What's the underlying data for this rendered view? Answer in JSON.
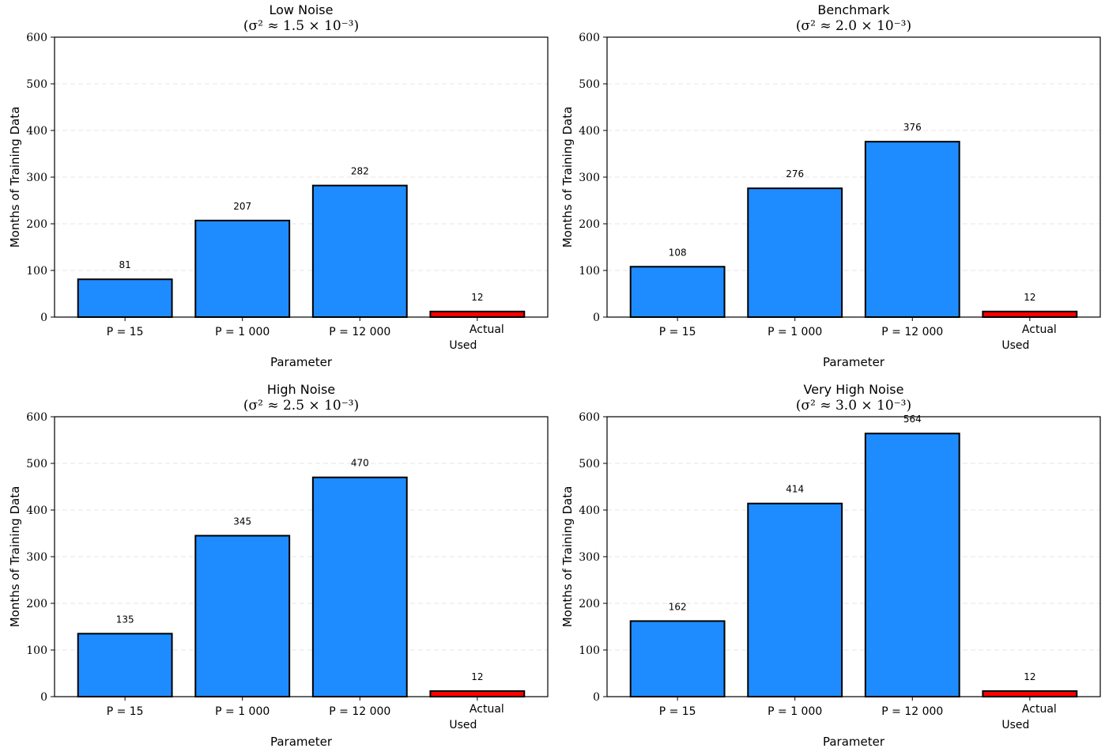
{
  "chart_data": [
    {
      "type": "bar",
      "title": "Low Noise",
      "subtitle": "(σ² ≈ 1.5 × 10⁻³)",
      "xlabel": "Parameter",
      "ylabel": "Months of Training Data",
      "categories": [
        "P = 15",
        "P = 1 000",
        "P = 12 000",
        "Actual\nUsed"
      ],
      "values": [
        81,
        207,
        282,
        12
      ],
      "colors": [
        "#1e8cff",
        "#1e8cff",
        "#1e8cff",
        "#ff0000"
      ],
      "ylim": [
        0,
        600
      ],
      "yticks": [
        0,
        100,
        200,
        300,
        400,
        500,
        600
      ],
      "grid": "y-dashed"
    },
    {
      "type": "bar",
      "title": "Benchmark",
      "subtitle": "(σ² ≈ 2.0 × 10⁻³)",
      "xlabel": "Parameter",
      "ylabel": "Months of Training Data",
      "categories": [
        "P = 15",
        "P = 1 000",
        "P = 12 000",
        "Actual\nUsed"
      ],
      "values": [
        108,
        276,
        376,
        12
      ],
      "colors": [
        "#1e8cff",
        "#1e8cff",
        "#1e8cff",
        "#ff0000"
      ],
      "ylim": [
        0,
        600
      ],
      "yticks": [
        0,
        100,
        200,
        300,
        400,
        500,
        600
      ],
      "grid": "y-dashed"
    },
    {
      "type": "bar",
      "title": "High Noise",
      "subtitle": "(σ² ≈ 2.5 × 10⁻³)",
      "xlabel": "Parameter",
      "ylabel": "Months of Training Data",
      "categories": [
        "P = 15",
        "P = 1 000",
        "P = 12 000",
        "Actual\nUsed"
      ],
      "values": [
        135,
        345,
        470,
        12
      ],
      "colors": [
        "#1e8cff",
        "#1e8cff",
        "#1e8cff",
        "#ff0000"
      ],
      "ylim": [
        0,
        600
      ],
      "yticks": [
        0,
        100,
        200,
        300,
        400,
        500,
        600
      ],
      "grid": "y-dashed"
    },
    {
      "type": "bar",
      "title": "Very High Noise",
      "subtitle": "(σ² ≈ 3.0 × 10⁻³)",
      "xlabel": "Parameter",
      "ylabel": "Months of Training Data",
      "categories": [
        "P = 15",
        "P = 1 000",
        "P = 12 000",
        "Actual\nUsed"
      ],
      "values": [
        162,
        414,
        564,
        12
      ],
      "colors": [
        "#1e8cff",
        "#1e8cff",
        "#1e8cff",
        "#ff0000"
      ],
      "ylim": [
        0,
        600
      ],
      "yticks": [
        0,
        100,
        200,
        300,
        400,
        500,
        600
      ],
      "grid": "y-dashed"
    }
  ]
}
